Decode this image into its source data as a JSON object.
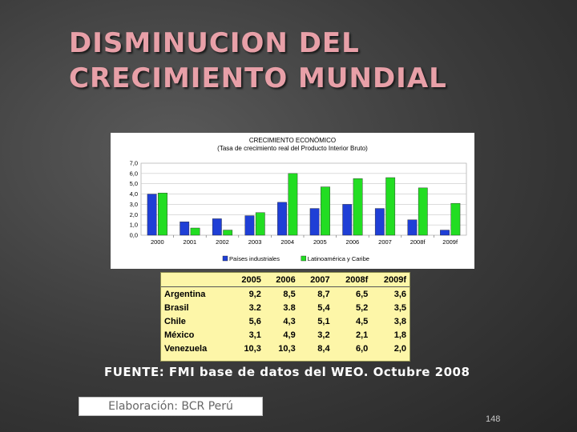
{
  "slide": {
    "title_line1": "DISMINUCION DEL",
    "title_line2": "CRECIMIENTO MUNDIAL",
    "source": "FUENTE: FMI base de datos del WEO. Octubre 2008",
    "credit": "Elaboración: BCR Perú",
    "page_number": "148"
  },
  "chart_data": {
    "type": "bar",
    "title": "CRECIMIENTO ECONÓMICO",
    "subtitle": "(Tasa de crecimiento real del Producto Interior Bruto)",
    "categories": [
      "2000",
      "2001",
      "2002",
      "2003",
      "2004",
      "2005",
      "2006",
      "2007",
      "2008f",
      "2009f"
    ],
    "ytick_labels": [
      "0,0",
      "1,0",
      "2,0",
      "3,0",
      "4,0",
      "5,0",
      "6,0",
      "7,0"
    ],
    "ylim": [
      0,
      7
    ],
    "grid": true,
    "legend_position": "bottom",
    "series": [
      {
        "name": "Países industriales",
        "color": "#1f3fd6",
        "values": [
          4.0,
          1.3,
          1.6,
          1.9,
          3.2,
          2.6,
          3.0,
          2.6,
          1.5,
          0.5
        ]
      },
      {
        "name": "Latinoamérica y Caribe",
        "color": "#22dd22",
        "values": [
          4.1,
          0.7,
          0.5,
          2.2,
          6.0,
          4.7,
          5.5,
          5.6,
          4.6,
          3.1
        ]
      }
    ]
  },
  "table": {
    "headers": [
      "",
      "2005",
      "2006",
      "2007",
      "2008f",
      "2009f"
    ],
    "rows": [
      [
        "Argentina",
        "9,2",
        "8,5",
        "8,7",
        "6,5",
        "3,6"
      ],
      [
        "Brasil",
        "3.2",
        "3.8",
        "5,4",
        "5,2",
        "3,5"
      ],
      [
        "Chile",
        "5,6",
        "4,3",
        "5,1",
        "4,5",
        "3,8"
      ],
      [
        "México",
        "3,1",
        "4,9",
        "3,2",
        "2,1",
        "1,8"
      ],
      [
        "Venezuela",
        "10,3",
        "10,3",
        "8,4",
        "6,0",
        "2,0"
      ]
    ]
  }
}
